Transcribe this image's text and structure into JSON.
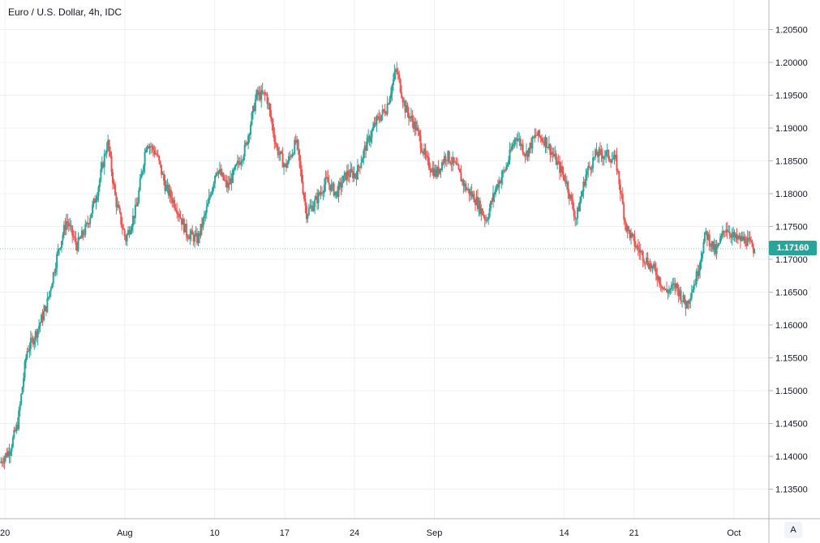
{
  "chart_data": {
    "type": "candlestick",
    "title": "Euro / U.S. Dollar, 4h, IDC",
    "last_price": "1.17160",
    "ylim": [
      1.1305,
      1.2095
    ],
    "yticks": [
      "1.13500",
      "1.14000",
      "1.14500",
      "1.15000",
      "1.15500",
      "1.16000",
      "1.16500",
      "1.17000",
      "1.17500",
      "1.18000",
      "1.18500",
      "1.19000",
      "1.19500",
      "1.20000",
      "1.20500"
    ],
    "xticks": [
      {
        "label": "20",
        "day": 20
      },
      {
        "label": "Aug",
        "day": 32
      },
      {
        "label": "10",
        "day": 41
      },
      {
        "label": "17",
        "day": 48
      },
      {
        "label": "24",
        "day": 55
      },
      {
        "label": "Sep",
        "day": 63
      },
      {
        "label": "14",
        "day": 76
      },
      {
        "label": "21",
        "day": 83
      },
      {
        "label": "Oct",
        "day": 93
      }
    ],
    "x_range_days": [
      19.5,
      96.5
    ],
    "grid": true,
    "up_color": "#26a69a",
    "down_color": "#ef5350",
    "scale_button": "A",
    "trend": [
      [
        19.6,
        1.139
      ],
      [
        20.6,
        1.141
      ],
      [
        21.4,
        1.145
      ],
      [
        22.3,
        1.156
      ],
      [
        23.3,
        1.159
      ],
      [
        24.3,
        1.163
      ],
      [
        25.4,
        1.171
      ],
      [
        26.3,
        1.176
      ],
      [
        27.3,
        1.172
      ],
      [
        28.3,
        1.175
      ],
      [
        29.3,
        1.18
      ],
      [
        30.4,
        1.188
      ],
      [
        31.2,
        1.179
      ],
      [
        32.2,
        1.173
      ],
      [
        33.3,
        1.178
      ],
      [
        34.3,
        1.188
      ],
      [
        35.3,
        1.186
      ],
      [
        36.2,
        1.181
      ],
      [
        37.3,
        1.178
      ],
      [
        38.3,
        1.174
      ],
      [
        39.4,
        1.173
      ],
      [
        40.4,
        1.178
      ],
      [
        41.3,
        1.184
      ],
      [
        42.4,
        1.181
      ],
      [
        43.3,
        1.184
      ],
      [
        44.2,
        1.187
      ],
      [
        45.3,
        1.195
      ],
      [
        46.3,
        1.195
      ],
      [
        47.3,
        1.187
      ],
      [
        48.2,
        1.184
      ],
      [
        49.3,
        1.188
      ],
      [
        50.3,
        1.177
      ],
      [
        51.3,
        1.179
      ],
      [
        52.3,
        1.182
      ],
      [
        53.3,
        1.18
      ],
      [
        54.3,
        1.183
      ],
      [
        55.3,
        1.183
      ],
      [
        56.2,
        1.187
      ],
      [
        57.3,
        1.191
      ],
      [
        58.3,
        1.193
      ],
      [
        59.3,
        1.199
      ],
      [
        60.2,
        1.193
      ],
      [
        61.3,
        1.19
      ],
      [
        62.3,
        1.185
      ],
      [
        63.3,
        1.183
      ],
      [
        64.3,
        1.186
      ],
      [
        65.3,
        1.184
      ],
      [
        66.2,
        1.181
      ],
      [
        67.3,
        1.179
      ],
      [
        68.3,
        1.176
      ],
      [
        69.3,
        1.181
      ],
      [
        70.3,
        1.184
      ],
      [
        71.3,
        1.189
      ],
      [
        72.3,
        1.186
      ],
      [
        73.3,
        1.189
      ],
      [
        74.3,
        1.188
      ],
      [
        75.3,
        1.185
      ],
      [
        76.3,
        1.182
      ],
      [
        77.3,
        1.176
      ],
      [
        78.3,
        1.183
      ],
      [
        79.3,
        1.186
      ],
      [
        80.3,
        1.186
      ],
      [
        81.3,
        1.185
      ],
      [
        82.3,
        1.175
      ],
      [
        83.3,
        1.172
      ],
      [
        84.3,
        1.17
      ],
      [
        85.3,
        1.168
      ],
      [
        86.3,
        1.165
      ],
      [
        87.3,
        1.166
      ],
      [
        88.3,
        1.163
      ],
      [
        89.3,
        1.167
      ],
      [
        90.3,
        1.174
      ],
      [
        91.3,
        1.171
      ],
      [
        92.3,
        1.175
      ],
      [
        93.3,
        1.173
      ],
      [
        94.3,
        1.173
      ],
      [
        95.1,
        1.1716
      ]
    ]
  }
}
